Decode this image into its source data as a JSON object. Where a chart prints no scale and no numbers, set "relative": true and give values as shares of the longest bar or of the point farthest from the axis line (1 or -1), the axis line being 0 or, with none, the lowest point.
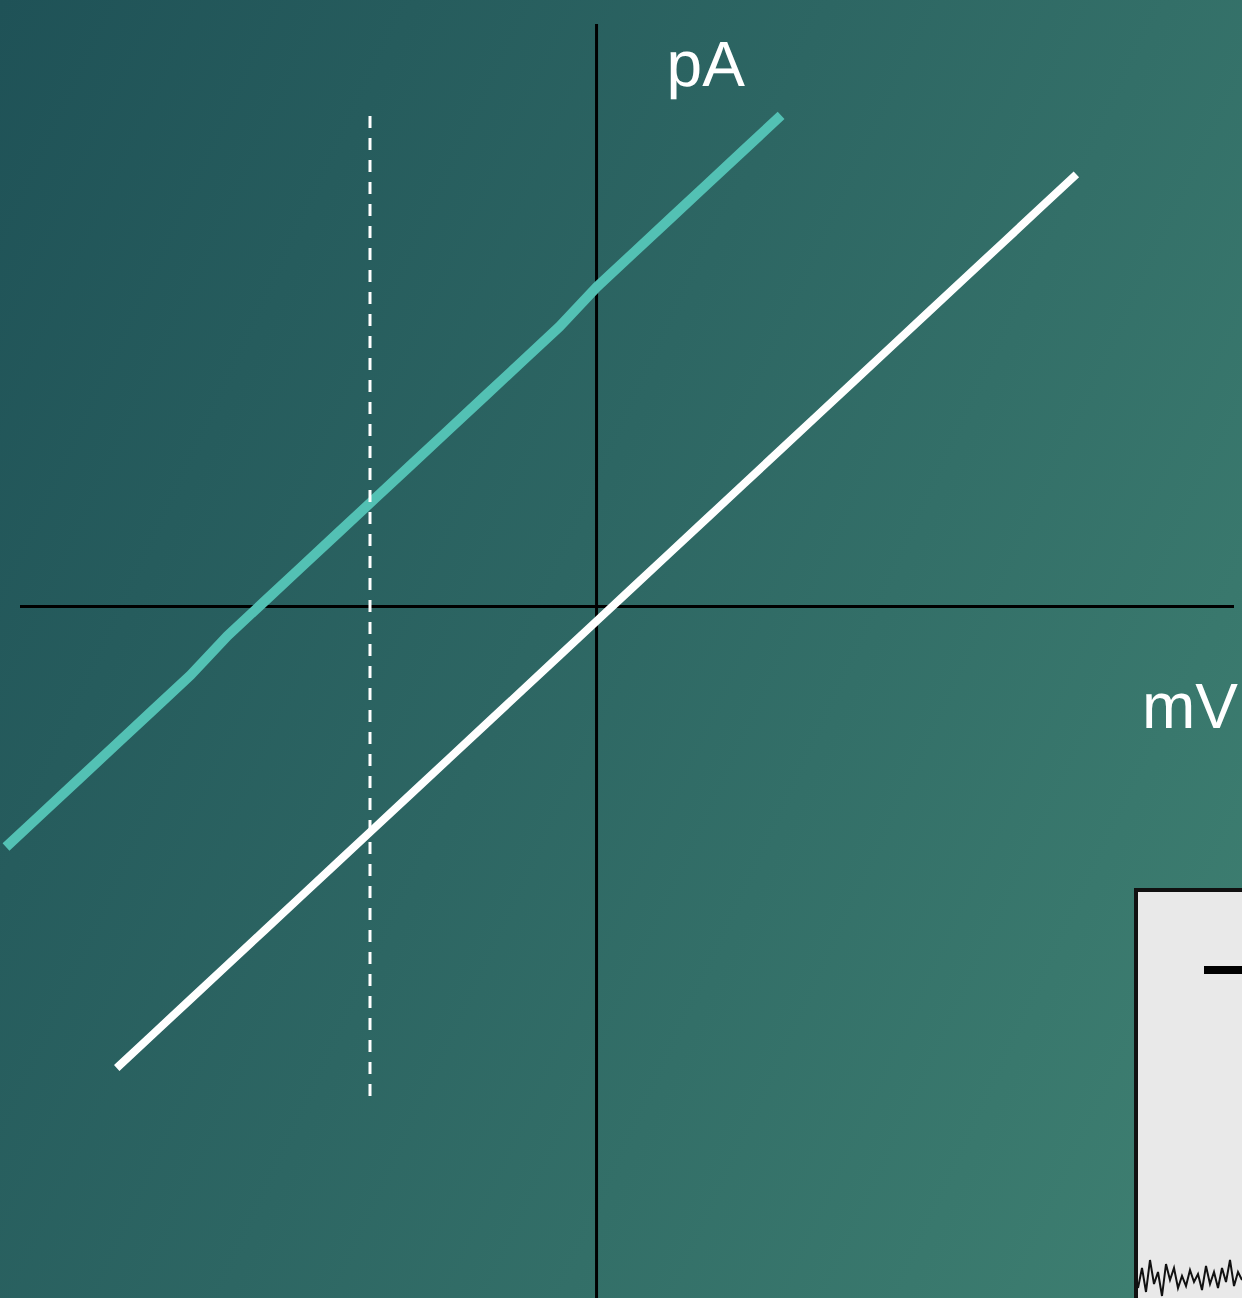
{
  "chart_data": {
    "type": "line",
    "relative": true,
    "xlabel": "mV",
    "ylabel": "pA",
    "categories": [
      null,
      null,
      null,
      null,
      null,
      null,
      null,
      null,
      null,
      null,
      null,
      null,
      null,
      null,
      null,
      null,
      null,
      null,
      null,
      null,
      null,
      null,
      null,
      null,
      null,
      null,
      null,
      null,
      null,
      null,
      null,
      null,
      null,
      null
    ],
    "series": [
      {
        "color": "#53c1b4",
        "values": [
          -0.49,
          -0.42,
          -0.35,
          -0.28,
          -0.21,
          -0.14,
          -0.06,
          0.01,
          0.08,
          0.15,
          0.22,
          0.29,
          0.36,
          0.43,
          0.5,
          0.57,
          0.65,
          0.72,
          0.79,
          0.86,
          0.93,
          1,
          null,
          null,
          null,
          null,
          null,
          null,
          null,
          null,
          null,
          null,
          null,
          null
        ]
      },
      {
        "color": "#ffffff",
        "values": [
          null,
          null,
          null,
          -0.94,
          -0.87,
          -0.8,
          -0.73,
          -0.66,
          -0.59,
          -0.52,
          -0.45,
          -0.38,
          -0.31,
          -0.24,
          -0.17,
          -0.1,
          -0.03,
          0.04,
          0.11,
          0.18,
          0.25,
          0.32,
          0.39,
          0.46,
          0.53,
          0.6,
          0.67,
          0.74,
          0.81,
          0.88,
          null,
          null,
          null,
          null
        ]
      }
    ]
  }
}
